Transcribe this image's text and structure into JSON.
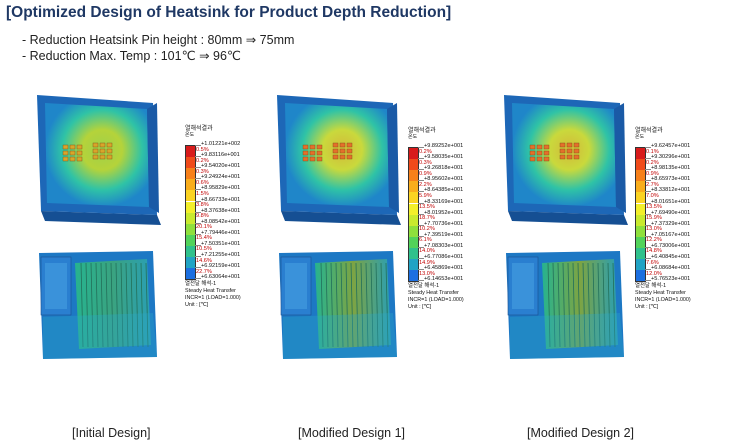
{
  "title": "[Optimized Design of Heatsink for Product Depth Reduction]",
  "bullets": [
    "- Reduction Heatsink Pin height : 80mm ⇒ 75mm",
    "- Reduction Max. Temp : 101℃ ⇒ 96℃"
  ],
  "legend_title": "열해석결과",
  "legend_sub": "온도",
  "analysis_type": "Steady Heat Transfer",
  "designs": [
    {
      "caption": "[Initial Design]",
      "info_label": "열전달 해석-1",
      "incr": "INCR=1 (LOAD=1.000)",
      "unit": "Unit : [℃]",
      "values": [
        "+1.01221e+002",
        "+9.83116e+001",
        "+9.54020e+001",
        "+9.24924e+001",
        "+8.95829e+001",
        "+8.66733e+001",
        "+8.37638e+001",
        "+8.08542e+001",
        "+7.79446e+001",
        "+7.50351e+001",
        "+7.21255e+001",
        "+6.92159e+001",
        "+6.63064e+001"
      ],
      "percents": [
        "0.5%",
        "0.2%",
        "0.3%",
        "0.6%",
        "1.5%",
        "3.8%",
        "9.8%",
        "20.1%",
        "15.4%",
        "10.5%",
        "14.6%",
        "22.7%"
      ]
    },
    {
      "caption": "[Modified  Design 1]",
      "info_label": "열전달 해석-1",
      "incr": "INCR=1 (LOAD=1.000)",
      "unit": "Unit : [℃]",
      "values": [
        "+9.89252e+001",
        "+9.58035e+001",
        "+9.26818e+001",
        "+8.95602e+001",
        "+8.64385e+001",
        "+8.33169e+001",
        "+8.01952e+001",
        "+7.70736e+001",
        "+7.39519e+001",
        "+7.08303e+001",
        "+6.77086e+001",
        "+6.45869e+001",
        "+6.14653e+001"
      ],
      "percents": [
        "0.2%",
        "0.3%",
        "0.9%",
        "2.2%",
        "5.9%",
        "13.5%",
        "18.7%",
        "10.2%",
        "6.1%",
        "14.0%",
        "14.9%",
        "13.0%"
      ]
    },
    {
      "caption": "[Modified  Design 2]",
      "info_label": "열전달 해석-1",
      "incr": "INCR=1 (LOAD=1.000)",
      "unit": "Unit : [℃]",
      "values": [
        "+9.62457e+001",
        "+9.30296e+001",
        "+8.98135e+001",
        "+8.65973e+001",
        "+8.33812e+001",
        "+8.01651e+001",
        "+7.69490e+001",
        "+7.37329e+001",
        "+7.05167e+001",
        "+6.73006e+001",
        "+6.40845e+001",
        "+6.08684e+001",
        "+5.76523e+001"
      ],
      "percents": [
        "0.1%",
        "0.2%",
        "0.9%",
        "2.7%",
        "7.0%",
        "13.5%",
        "15.9%",
        "13.0%",
        "12.2%",
        "14.8%",
        "7.6%",
        "12.0%"
      ]
    }
  ],
  "scale_colors": [
    "#d81b1b",
    "#f04a1a",
    "#f7801a",
    "#f9ad1c",
    "#fbd322",
    "#f3ef2a",
    "#c9ea2e",
    "#8fe03c",
    "#52d35a",
    "#2fc18c",
    "#21a3c4",
    "#1c6fe0"
  ]
}
